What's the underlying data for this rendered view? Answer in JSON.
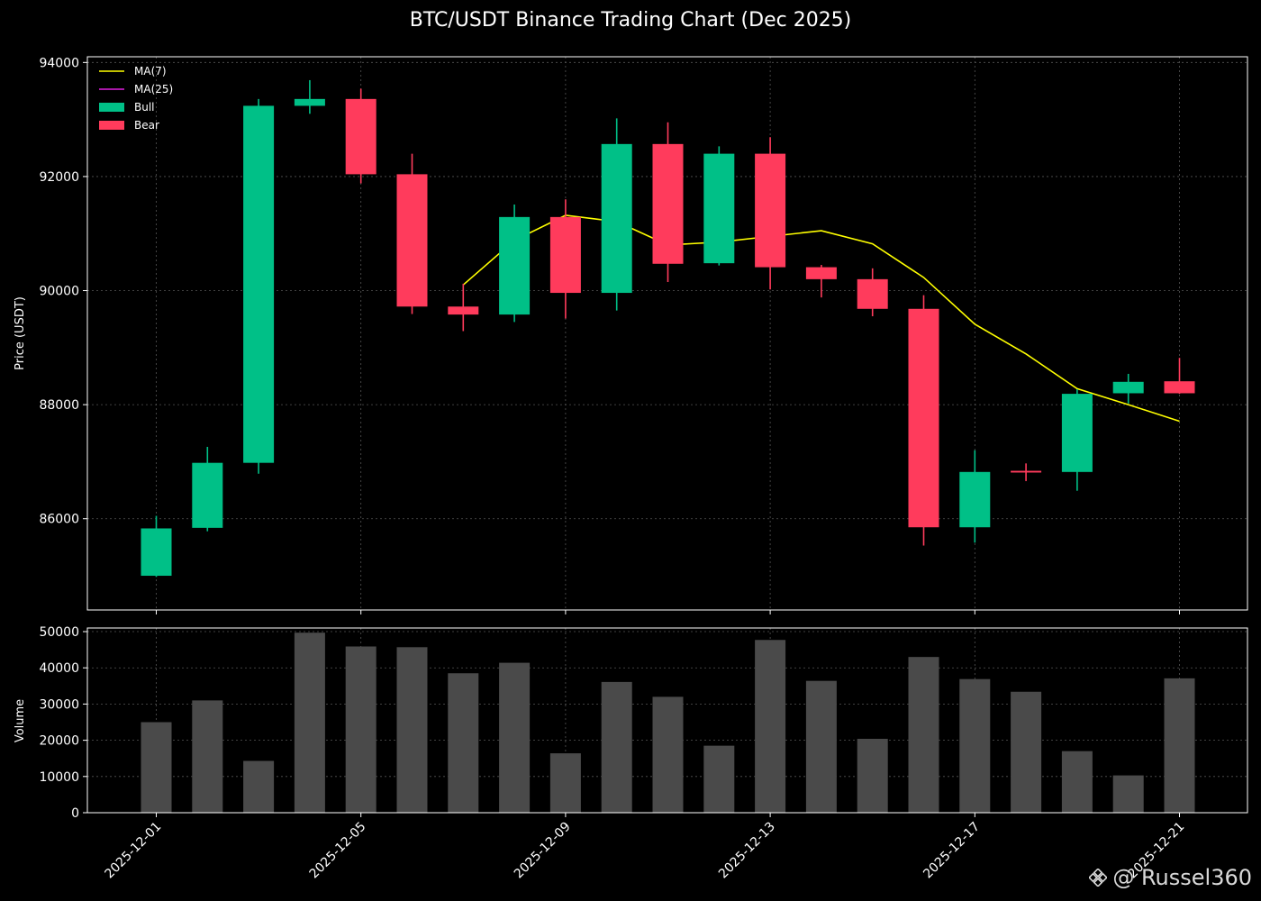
{
  "chart_data": [
    {
      "type": "candlestick",
      "title": "BTC/USDT Binance Trading Chart (Dec 2025)",
      "ylabel": "Price (USDT)",
      "ylim": [
        84400,
        94100
      ],
      "yticks": [
        86000,
        88000,
        90000,
        92000,
        94000
      ],
      "grid": true,
      "legend": {
        "placement": "top-left",
        "entries": [
          {
            "label": "MA(7)",
            "kind": "line",
            "color": "#ffff00"
          },
          {
            "label": "MA(25)",
            "kind": "line",
            "color": "#e020e0"
          },
          {
            "label": "Bull",
            "kind": "box",
            "color": "#00c087"
          },
          {
            "label": "Bear",
            "kind": "box",
            "color": "#ff3b5c"
          }
        ]
      },
      "candles": [
        {
          "date": "2025-12-01",
          "open": 85000,
          "high": 86050,
          "low": 84980,
          "close": 85830
        },
        {
          "date": "2025-12-02",
          "open": 85840,
          "high": 87260,
          "low": 85780,
          "close": 86980
        },
        {
          "date": "2025-12-03",
          "open": 86980,
          "high": 93360,
          "low": 86790,
          "close": 93240
        },
        {
          "date": "2025-12-04",
          "open": 93240,
          "high": 93690,
          "low": 93100,
          "close": 93360
        },
        {
          "date": "2025-12-05",
          "open": 93360,
          "high": 93540,
          "low": 91880,
          "close": 92040
        },
        {
          "date": "2025-12-06",
          "open": 92040,
          "high": 92400,
          "low": 89590,
          "close": 89720
        },
        {
          "date": "2025-12-07",
          "open": 89720,
          "high": 90120,
          "low": 89290,
          "close": 89580
        },
        {
          "date": "2025-12-08",
          "open": 89580,
          "high": 91510,
          "low": 89450,
          "close": 91290
        },
        {
          "date": "2025-12-09",
          "open": 91290,
          "high": 91600,
          "low": 89510,
          "close": 89960
        },
        {
          "date": "2025-12-10",
          "open": 89960,
          "high": 93020,
          "low": 89650,
          "close": 92570
        },
        {
          "date": "2025-12-11",
          "open": 92570,
          "high": 92950,
          "low": 90150,
          "close": 90470
        },
        {
          "date": "2025-12-12",
          "open": 90480,
          "high": 92530,
          "low": 90440,
          "close": 92400
        },
        {
          "date": "2025-12-13",
          "open": 92400,
          "high": 92690,
          "low": 90020,
          "close": 90410
        },
        {
          "date": "2025-12-14",
          "open": 90410,
          "high": 90450,
          "low": 89880,
          "close": 90200
        },
        {
          "date": "2025-12-15",
          "open": 90200,
          "high": 90390,
          "low": 89550,
          "close": 89680
        },
        {
          "date": "2025-12-16",
          "open": 89680,
          "high": 89920,
          "low": 85530,
          "close": 85850
        },
        {
          "date": "2025-12-17",
          "open": 85850,
          "high": 87200,
          "low": 85580,
          "close": 86820
        },
        {
          "date": "2025-12-18",
          "open": 86840,
          "high": 86970,
          "low": 86660,
          "close": 86810
        },
        {
          "date": "2025-12-19",
          "open": 86820,
          "high": 88270,
          "low": 86490,
          "close": 88190
        },
        {
          "date": "2025-12-20",
          "open": 88200,
          "high": 88540,
          "low": 88020,
          "close": 88400
        },
        {
          "date": "2025-12-21",
          "open": 88410,
          "high": 88820,
          "low": 88190,
          "close": 88200
        }
      ],
      "series": [
        {
          "name": "MA(7)",
          "color": "#ffff00",
          "dates": [
            "2025-12-07",
            "2025-12-08",
            "2025-12-09",
            "2025-12-10",
            "2025-12-11",
            "2025-12-12",
            "2025-12-13",
            "2025-12-14",
            "2025-12-15",
            "2025-12-16",
            "2025-12-17",
            "2025-12-18",
            "2025-12-19",
            "2025-12-20",
            "2025-12-21"
          ],
          "values": [
            90100,
            90880,
            91320,
            91210,
            90800,
            90850,
            90950,
            91050,
            90820,
            90230,
            89410,
            88890,
            88280,
            88000,
            87710
          ]
        }
      ],
      "colors": {
        "bull": "#00c087",
        "bear": "#ff3b5c"
      }
    },
    {
      "type": "bar",
      "ylabel": "Volume",
      "ylim": [
        0,
        51000
      ],
      "yticks": [
        0,
        10000,
        20000,
        30000,
        40000,
        50000
      ],
      "grid": true,
      "bar_color": "#4a4a4a",
      "categories": [
        "2025-12-01",
        "2025-12-02",
        "2025-12-03",
        "2025-12-04",
        "2025-12-05",
        "2025-12-06",
        "2025-12-07",
        "2025-12-08",
        "2025-12-09",
        "2025-12-10",
        "2025-12-11",
        "2025-12-12",
        "2025-12-13",
        "2025-12-14",
        "2025-12-15",
        "2025-12-16",
        "2025-12-17",
        "2025-12-18",
        "2025-12-19",
        "2025-12-20",
        "2025-12-21"
      ],
      "values": [
        25000,
        31000,
        14300,
        49700,
        45900,
        45700,
        38500,
        41400,
        16400,
        36100,
        32000,
        18500,
        47700,
        36400,
        20400,
        43000,
        36900,
        33400,
        17000,
        10300,
        37100
      ],
      "xtick_labels": [
        "2025-12-01",
        "2025-12-05",
        "2025-12-09",
        "2025-12-13",
        "2025-12-17",
        "2025-12-21"
      ]
    }
  ],
  "watermark": {
    "text": "@ Russel360",
    "icon": "binance-logo-icon"
  }
}
